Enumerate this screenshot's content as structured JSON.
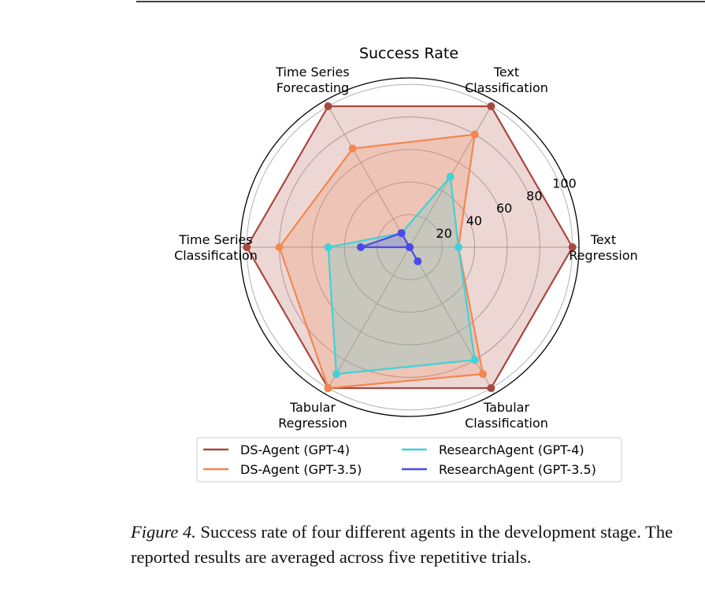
{
  "chart_data": {
    "type": "radar",
    "title": "Success Rate",
    "axes": [
      [
        "Text",
        "Regression"
      ],
      [
        "Text",
        "Classification"
      ],
      [
        "Time Series",
        "Forecasting"
      ],
      [
        "Time Series",
        "Classification"
      ],
      [
        "Tabular",
        "Regression"
      ],
      [
        "Tabular",
        "Classification"
      ]
    ],
    "rlim": [
      0,
      104
    ],
    "rticks": [
      20,
      40,
      60,
      80,
      100
    ],
    "grid": true,
    "legend_position": "bottom",
    "series": [
      {
        "name": "DS-Agent (GPT-4)",
        "color": "#a8483f",
        "values": [
          100,
          100,
          100,
          100,
          100,
          100
        ]
      },
      {
        "name": "DS-Agent (GPT-3.5)",
        "color": "#f4864f",
        "values": [
          30,
          80,
          70,
          80,
          100,
          90
        ]
      },
      {
        "name": "ResearchAgent (GPT-4)",
        "color": "#3fd2d8",
        "values": [
          30,
          50,
          10,
          50,
          90,
          80
        ]
      },
      {
        "name": "ResearchAgent (GPT-3.5)",
        "color": "#4a4ae6",
        "values": [
          0,
          0,
          10,
          30,
          0,
          10
        ]
      }
    ]
  },
  "caption": {
    "label": "Figure 4.",
    "text": " Success rate of four different agents in the development stage. The reported results are averaged across five repetitive trials."
  }
}
